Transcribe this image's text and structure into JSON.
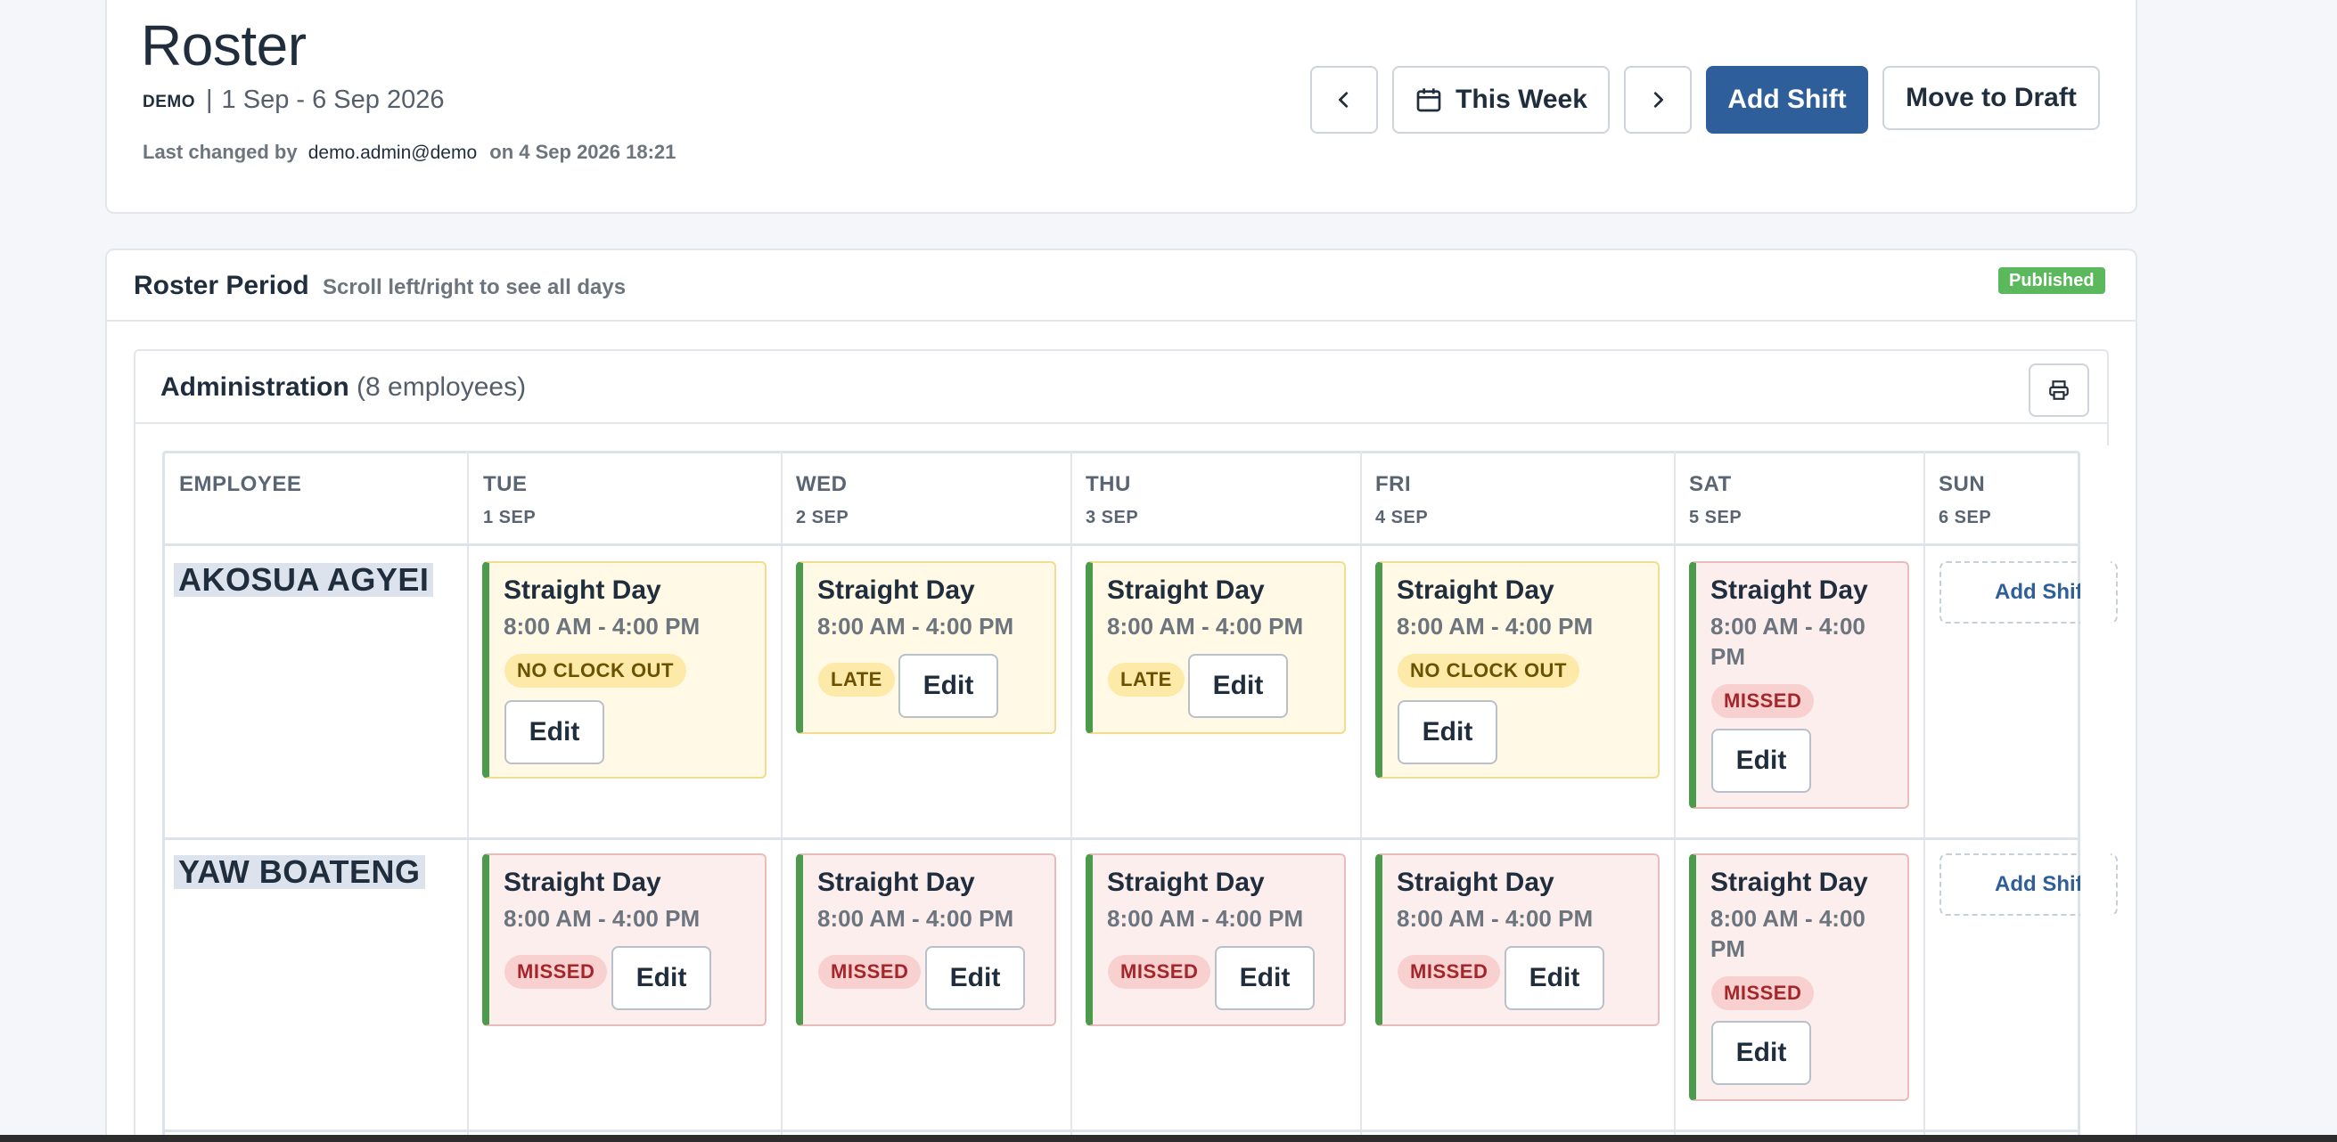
{
  "header": {
    "title": "Roster",
    "org": "DEMO",
    "separator": "|",
    "date_range": "1 Sep - 6 Sep 2026",
    "last_changed_prefix": "Last changed by",
    "last_changed_user": "demo.admin@demo",
    "last_changed_suffix": "on 4 Sep 2026 18:21",
    "this_week_label": "This Week",
    "add_shift_label": "Add Shift",
    "move_to_draft_label": "Move to Draft"
  },
  "period": {
    "title": "Roster Period",
    "hint": "Scroll left/right to see all days",
    "status": "Published"
  },
  "department": {
    "name": "Administration",
    "count": "(8 employees)"
  },
  "table": {
    "employee_header": "EMPLOYEE",
    "days": [
      {
        "day": "TUE",
        "date": "1 SEP"
      },
      {
        "day": "WED",
        "date": "2 SEP"
      },
      {
        "day": "THU",
        "date": "3 SEP"
      },
      {
        "day": "FRI",
        "date": "4 SEP"
      },
      {
        "day": "SAT",
        "date": "5 SEP"
      },
      {
        "day": "SUN",
        "date": "6 SEP"
      }
    ],
    "rows": [
      {
        "employee": "AKOSUA AGYEI",
        "shifts": [
          {
            "name": "Straight Day",
            "time": "8:00 AM - 4:00 PM",
            "status": "NO CLOCK OUT",
            "edit": "Edit"
          },
          {
            "name": "Straight Day",
            "time": "8:00 AM - 4:00 PM",
            "status": "LATE",
            "edit": "Edit"
          },
          {
            "name": "Straight Day",
            "time": "8:00 AM - 4:00 PM",
            "status": "LATE",
            "edit": "Edit"
          },
          {
            "name": "Straight Day",
            "time": "8:00 AM - 4:00 PM",
            "status": "NO CLOCK OUT",
            "edit": "Edit"
          },
          {
            "name": "Straight Day",
            "time_line1": "8:00 AM - 4:00",
            "time_line2": "PM",
            "status": "MISSED",
            "edit": "Edit"
          }
        ],
        "sun_add": "Add Shift"
      },
      {
        "employee": "YAW BOATENG",
        "shifts": [
          {
            "name": "Straight Day",
            "time": "8:00 AM - 4:00 PM",
            "status": "MISSED",
            "edit": "Edit"
          },
          {
            "name": "Straight Day",
            "time": "8:00 AM - 4:00 PM",
            "status": "MISSED",
            "edit": "Edit"
          },
          {
            "name": "Straight Day",
            "time": "8:00 AM - 4:00 PM",
            "status": "MISSED",
            "edit": "Edit"
          },
          {
            "name": "Straight Day",
            "time": "8:00 AM - 4:00 PM",
            "status": "MISSED",
            "edit": "Edit"
          },
          {
            "name": "Straight Day",
            "time_line1": "8:00 AM - 4:00",
            "time_line2": "PM",
            "status": "MISSED",
            "edit": "Edit"
          }
        ],
        "sun_add": "Add Shift"
      }
    ]
  },
  "colors": {
    "primary": "#2f5f9b",
    "published": "#5cb85c",
    "warn_bg": "#fff9e6",
    "missed_bg": "#fdeeee",
    "shift_accent": "#4c9a4c"
  },
  "icons": {
    "prev": "chevron-left-icon",
    "next": "chevron-right-icon",
    "calendar": "calendar-icon",
    "print": "printer-icon"
  }
}
